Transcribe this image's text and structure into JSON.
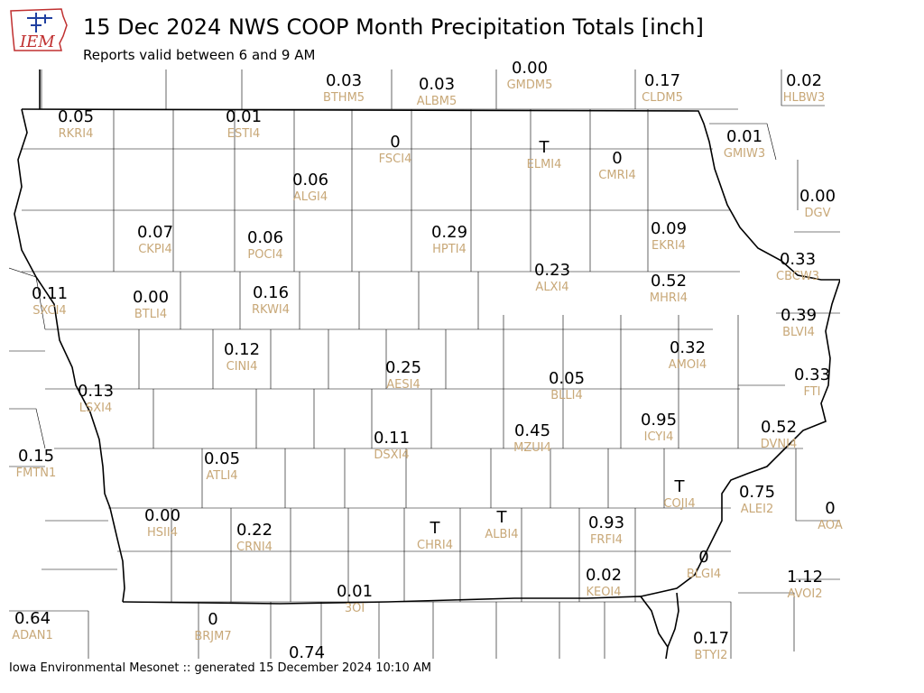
{
  "header": {
    "logo_text": "IEM",
    "title": "15 Dec 2024 NWS COOP Month Precipitation Totals [inch]",
    "subtitle": "Reports valid between 6 and 9 AM"
  },
  "footer": "Iowa Environmental Mesonet :: generated 15 December 2024 10:10 AM",
  "colors": {
    "value": "#000000",
    "station": "#c8a878",
    "border": "#000000"
  },
  "stations": [
    {
      "id": "BTHM5",
      "value": "0.03"
    },
    {
      "id": "ALBM5",
      "value": "0.03"
    },
    {
      "id": "GMDM5",
      "value": "0.00"
    },
    {
      "id": "CLDM5",
      "value": "0.17"
    },
    {
      "id": "HLBW3",
      "value": "0.02"
    },
    {
      "id": "RKRI4",
      "value": "0.05"
    },
    {
      "id": "ESTI4",
      "value": "0.01"
    },
    {
      "id": "FSCI4",
      "value": "0"
    },
    {
      "id": "ELMI4",
      "value": "T"
    },
    {
      "id": "CMRI4",
      "value": "0"
    },
    {
      "id": "GMIW3",
      "value": "0.01"
    },
    {
      "id": "ALGI4",
      "value": "0.06"
    },
    {
      "id": "DGV",
      "value": "0.00"
    },
    {
      "id": "CKPI4",
      "value": "0.07"
    },
    {
      "id": "POCI4",
      "value": "0.06"
    },
    {
      "id": "HPTI4",
      "value": "0.29"
    },
    {
      "id": "EKRI4",
      "value": "0.09"
    },
    {
      "id": "CBCW3",
      "value": "0.33"
    },
    {
      "id": "ALXI4",
      "value": "0.23"
    },
    {
      "id": "SXCI4",
      "value": "0.11"
    },
    {
      "id": "BTLI4",
      "value": "0.00"
    },
    {
      "id": "RKWI4",
      "value": "0.16"
    },
    {
      "id": "MHRI4",
      "value": "0.52"
    },
    {
      "id": "BLVI4",
      "value": "0.39"
    },
    {
      "id": "CINI4",
      "value": "0.12"
    },
    {
      "id": "AMOI4",
      "value": "0.32"
    },
    {
      "id": "AESI4",
      "value": "0.25"
    },
    {
      "id": "FTI",
      "value": "0.33"
    },
    {
      "id": "BLLI4",
      "value": "0.05"
    },
    {
      "id": "LSXI4",
      "value": "0.13"
    },
    {
      "id": "ICYI4",
      "value": "0.95"
    },
    {
      "id": "DVNI4",
      "value": "0.52"
    },
    {
      "id": "MZUI4",
      "value": "0.45"
    },
    {
      "id": "DSXI4",
      "value": "0.11"
    },
    {
      "id": "FMTN1",
      "value": "0.15"
    },
    {
      "id": "ATLI4",
      "value": "0.05"
    },
    {
      "id": "COJI4",
      "value": "T"
    },
    {
      "id": "ALEI2",
      "value": "0.75"
    },
    {
      "id": "AOA",
      "value": "0"
    },
    {
      "id": "HSII4",
      "value": "0.00"
    },
    {
      "id": "CRNI4",
      "value": "0.22"
    },
    {
      "id": "CHRI4",
      "value": "T"
    },
    {
      "id": "ALBI4",
      "value": "T"
    },
    {
      "id": "FRFI4",
      "value": "0.93"
    },
    {
      "id": "BLGI4",
      "value": "0"
    },
    {
      "id": "KEOI4",
      "value": "0.02"
    },
    {
      "id": "AVOI2",
      "value": "1.12"
    },
    {
      "id": "3OI",
      "value": "0.01"
    },
    {
      "id": "ADAN1",
      "value": "0.64"
    },
    {
      "id": "BRJM7",
      "value": "0"
    },
    {
      "id": "BTYI2",
      "value": "0.17"
    },
    {
      "id": "",
      "value": "0.74"
    }
  ]
}
